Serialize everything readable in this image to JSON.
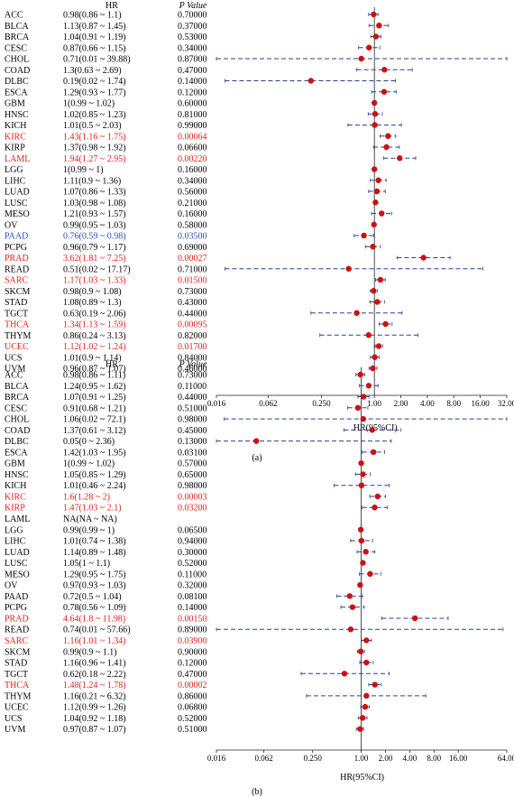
{
  "chart_data": [
    {
      "type": "forest",
      "panel_label": "(a)",
      "column_headers": {
        "hr": "HR",
        "p": "P Value"
      },
      "xlabel": "HR(95%CI)",
      "x_scale": "log2",
      "xlim": [
        0.016,
        32
      ],
      "xticks": [
        "0.016",
        "0.062",
        "0.250",
        "1.00",
        "2.00",
        "4.00",
        "8.00",
        "16.00",
        "32.00"
      ],
      "colors": {
        "default": "#000000",
        "red": "#e02020",
        "blue": "#2b4fb5",
        "marker": "#cc1111",
        "line": "#2b3f8f"
      },
      "rows": [
        {
          "cancer": "ACC",
          "hr_text": "0.98(0.86 ~ 1.1)",
          "p": "0.70000",
          "hr": 0.98,
          "lo": 0.86,
          "hi": 1.1,
          "color": "default"
        },
        {
          "cancer": "BLCA",
          "hr_text": "1.13(0.87 ~ 1.45)",
          "p": "0.37000",
          "hr": 1.13,
          "lo": 0.87,
          "hi": 1.45,
          "color": "default"
        },
        {
          "cancer": "BRCA",
          "hr_text": "1.04(0.91 ~ 1.19)",
          "p": "0.53000",
          "hr": 1.04,
          "lo": 0.91,
          "hi": 1.19,
          "color": "default"
        },
        {
          "cancer": "CESC",
          "hr_text": "0.87(0.66 ~ 1.15)",
          "p": "0.34000",
          "hr": 0.87,
          "lo": 0.66,
          "hi": 1.15,
          "color": "default"
        },
        {
          "cancer": "CHOL",
          "hr_text": "0.71(0.01 ~ 39.88)",
          "p": "0.87000",
          "hr": 0.71,
          "lo": 0.01,
          "hi": 39.88,
          "color": "default"
        },
        {
          "cancer": "COAD",
          "hr_text": "1.3(0.63 ~ 2.69)",
          "p": "0.47000",
          "hr": 1.3,
          "lo": 0.63,
          "hi": 2.69,
          "color": "default"
        },
        {
          "cancer": "DLBC",
          "hr_text": "0.19(0.02 ~ 1.74)",
          "p": "0.14000",
          "hr": 0.19,
          "lo": 0.02,
          "hi": 1.74,
          "color": "default"
        },
        {
          "cancer": "ESCA",
          "hr_text": "1.29(0.93 ~ 1.77)",
          "p": "0.12000",
          "hr": 1.29,
          "lo": 0.93,
          "hi": 1.77,
          "color": "default"
        },
        {
          "cancer": "GBM",
          "hr_text": "1(0.99 ~ 1.02)",
          "p": "0.60000",
          "hr": 1.0,
          "lo": 0.99,
          "hi": 1.02,
          "color": "default"
        },
        {
          "cancer": "HNSC",
          "hr_text": "1.02(0.85 ~ 1.23)",
          "p": "0.81000",
          "hr": 1.02,
          "lo": 0.85,
          "hi": 1.23,
          "color": "default"
        },
        {
          "cancer": "KICH",
          "hr_text": "1.01(0.5 ~ 2.03)",
          "p": "0.99000",
          "hr": 1.01,
          "lo": 0.5,
          "hi": 2.03,
          "color": "default"
        },
        {
          "cancer": "KIRC",
          "hr_text": "1.43(1.16 ~ 1.75)",
          "p": "0.00064",
          "hr": 1.43,
          "lo": 1.16,
          "hi": 1.75,
          "color": "red"
        },
        {
          "cancer": "KIRP",
          "hr_text": "1.37(0.98 ~ 1.92)",
          "p": "0.06600",
          "hr": 1.37,
          "lo": 0.98,
          "hi": 1.92,
          "color": "default"
        },
        {
          "cancer": "LAML",
          "hr_text": "1.94(1.27 ~ 2.95)",
          "p": "0.00220",
          "hr": 1.94,
          "lo": 1.27,
          "hi": 2.95,
          "color": "red"
        },
        {
          "cancer": "LGG",
          "hr_text": "1(0.99 ~ 1)",
          "p": "0.16000",
          "hr": 1.0,
          "lo": 0.99,
          "hi": 1.0,
          "color": "default"
        },
        {
          "cancer": "LIHC",
          "hr_text": "1.11(0.9 ~ 1.36)",
          "p": "0.34000",
          "hr": 1.11,
          "lo": 0.9,
          "hi": 1.36,
          "color": "default"
        },
        {
          "cancer": "LUAD",
          "hr_text": "1.07(0.86 ~ 1.33)",
          "p": "0.56000",
          "hr": 1.07,
          "lo": 0.86,
          "hi": 1.33,
          "color": "default"
        },
        {
          "cancer": "LUSC",
          "hr_text": "1.03(0.98 ~ 1.08)",
          "p": "0.21000",
          "hr": 1.03,
          "lo": 0.98,
          "hi": 1.08,
          "color": "default"
        },
        {
          "cancer": "MESO",
          "hr_text": "1.21(0.93 ~ 1.57)",
          "p": "0.16000",
          "hr": 1.21,
          "lo": 0.93,
          "hi": 1.57,
          "color": "default"
        },
        {
          "cancer": "OV",
          "hr_text": "0.99(0.95 ~ 1.03)",
          "p": "0.58000",
          "hr": 0.99,
          "lo": 0.95,
          "hi": 1.03,
          "color": "default"
        },
        {
          "cancer": "PAAD",
          "hr_text": "0.76(0.59 ~ 0.98)",
          "p": "0.03500",
          "hr": 0.76,
          "lo": 0.59,
          "hi": 0.98,
          "color": "blue"
        },
        {
          "cancer": "PCPG",
          "hr_text": "0.96(0.79 ~ 1.17)",
          "p": "0.69000",
          "hr": 0.96,
          "lo": 0.79,
          "hi": 1.17,
          "color": "default"
        },
        {
          "cancer": "PRAD",
          "hr_text": "3.62(1.81 ~ 7.25)",
          "p": "0.00027",
          "hr": 3.62,
          "lo": 1.81,
          "hi": 7.25,
          "color": "red"
        },
        {
          "cancer": "READ",
          "hr_text": "0.51(0.02 ~ 17.17)",
          "p": "0.71000",
          "hr": 0.51,
          "lo": 0.02,
          "hi": 17.17,
          "color": "default"
        },
        {
          "cancer": "SARC",
          "hr_text": "1.17(1.03 ~ 1.33)",
          "p": "0.01500",
          "hr": 1.17,
          "lo": 1.03,
          "hi": 1.33,
          "color": "red"
        },
        {
          "cancer": "SKCM",
          "hr_text": "0.98(0.9 ~ 1.08)",
          "p": "0.73000",
          "hr": 0.98,
          "lo": 0.9,
          "hi": 1.08,
          "color": "default"
        },
        {
          "cancer": "STAD",
          "hr_text": "1.08(0.89 ~ 1.3)",
          "p": "0.43000",
          "hr": 1.08,
          "lo": 0.89,
          "hi": 1.3,
          "color": "default"
        },
        {
          "cancer": "TGCT",
          "hr_text": "0.63(0.19 ~ 2.06)",
          "p": "0.44000",
          "hr": 0.63,
          "lo": 0.19,
          "hi": 2.06,
          "color": "default"
        },
        {
          "cancer": "THCA",
          "hr_text": "1.34(1.13 ~ 1.59)",
          "p": "0.00095",
          "hr": 1.34,
          "lo": 1.13,
          "hi": 1.59,
          "color": "red"
        },
        {
          "cancer": "THYM",
          "hr_text": "0.86(0.24 ~ 3.13)",
          "p": "0.82000",
          "hr": 0.86,
          "lo": 0.24,
          "hi": 3.13,
          "color": "default"
        },
        {
          "cancer": "UCEC",
          "hr_text": "1.12(1.02 ~ 1.24)",
          "p": "0.01700",
          "hr": 1.12,
          "lo": 1.02,
          "hi": 1.24,
          "color": "red"
        },
        {
          "cancer": "UCS",
          "hr_text": "1.01(0.9 ~ 1.14)",
          "p": "0.84000",
          "hr": 1.01,
          "lo": 0.9,
          "hi": 1.14,
          "color": "default"
        },
        {
          "cancer": "UVM",
          "hr_text": "0.96(0.87 ~ 1.07)",
          "p": "0.46000",
          "hr": 0.96,
          "lo": 0.87,
          "hi": 1.07,
          "color": "default"
        }
      ]
    },
    {
      "type": "forest",
      "panel_label": "(b)",
      "column_headers": {
        "hr": "HR",
        "p": "P Value"
      },
      "xlabel": "HR(95%CI)",
      "x_scale": "log2",
      "xlim": [
        0.016,
        64
      ],
      "xticks": [
        "0.016",
        "0.062",
        "0.250",
        "1.00",
        "2.00",
        "4.00",
        "8.00",
        "16.00",
        "64.00"
      ],
      "colors": {
        "default": "#000000",
        "red": "#e02020",
        "blue": "#2b4fb5",
        "marker": "#cc1111",
        "line": "#2b3f8f"
      },
      "rows": [
        {
          "cancer": "ACC",
          "hr_text": "0.98(0.86 ~ 1.11)",
          "p": "0.73000",
          "hr": 0.98,
          "lo": 0.86,
          "hi": 1.11,
          "color": "default"
        },
        {
          "cancer": "BLCA",
          "hr_text": "1.24(0.95 ~ 1.62)",
          "p": "0.11000",
          "hr": 1.24,
          "lo": 0.95,
          "hi": 1.62,
          "color": "default"
        },
        {
          "cancer": "BRCA",
          "hr_text": "1.07(0.91 ~ 1.25)",
          "p": "0.44000",
          "hr": 1.07,
          "lo": 0.91,
          "hi": 1.25,
          "color": "default"
        },
        {
          "cancer": "CESC",
          "hr_text": "0.91(0.68 ~ 1.21)",
          "p": "0.51000",
          "hr": 0.91,
          "lo": 0.68,
          "hi": 1.21,
          "color": "default"
        },
        {
          "cancer": "CHOL",
          "hr_text": "1.06(0.02 ~ 72.1)",
          "p": "0.98000",
          "hr": 1.06,
          "lo": 0.02,
          "hi": 72.1,
          "color": "default"
        },
        {
          "cancer": "COAD",
          "hr_text": "1.37(0.61 ~ 3.12)",
          "p": "0.45000",
          "hr": 1.37,
          "lo": 0.61,
          "hi": 3.12,
          "color": "default"
        },
        {
          "cancer": "DLBC",
          "hr_text": "0.05(0 ~ 2.36)",
          "p": "0.13000",
          "hr": 0.05,
          "lo": 0.001,
          "hi": 2.36,
          "color": "default"
        },
        {
          "cancer": "ESCA",
          "hr_text": "1.42(1.03 ~ 1.95)",
          "p": "0.03100",
          "hr": 1.42,
          "lo": 1.03,
          "hi": 1.95,
          "color": "default"
        },
        {
          "cancer": "GBM",
          "hr_text": "1(0.99 ~ 1.02)",
          "p": "0.57000",
          "hr": 1.0,
          "lo": 0.99,
          "hi": 1.02,
          "color": "default"
        },
        {
          "cancer": "HNSC",
          "hr_text": "1.05(0.85 ~ 1.29)",
          "p": "0.65000",
          "hr": 1.05,
          "lo": 0.85,
          "hi": 1.29,
          "color": "default"
        },
        {
          "cancer": "KICH",
          "hr_text": "1.01(0.46 ~ 2.24)",
          "p": "0.98000",
          "hr": 1.01,
          "lo": 0.46,
          "hi": 2.24,
          "color": "default"
        },
        {
          "cancer": "KIRC",
          "hr_text": "1.6(1.28 ~ 2)",
          "p": "0.00003",
          "hr": 1.6,
          "lo": 1.28,
          "hi": 2.0,
          "color": "red"
        },
        {
          "cancer": "KIRP",
          "hr_text": "1.47(1.03 ~ 2.1)",
          "p": "0.03200",
          "hr": 1.47,
          "lo": 1.03,
          "hi": 2.1,
          "color": "red"
        },
        {
          "cancer": "LAML",
          "hr_text": "NA(NA ~ NA)",
          "p": "",
          "hr": null,
          "lo": null,
          "hi": null,
          "color": "default"
        },
        {
          "cancer": "LGG",
          "hr_text": "0.99(0.99 ~ 1)",
          "p": "0.06500",
          "hr": 0.99,
          "lo": 0.99,
          "hi": 1.0,
          "color": "default"
        },
        {
          "cancer": "LIHC",
          "hr_text": "1.01(0.74 ~ 1.38)",
          "p": "0.94000",
          "hr": 1.01,
          "lo": 0.74,
          "hi": 1.38,
          "color": "default"
        },
        {
          "cancer": "LUAD",
          "hr_text": "1.14(0.89 ~ 1.48)",
          "p": "0.30000",
          "hr": 1.14,
          "lo": 0.89,
          "hi": 1.48,
          "color": "default"
        },
        {
          "cancer": "LUSC",
          "hr_text": "1.05(1 ~ 1.1)",
          "p": "0.52000",
          "hr": 1.05,
          "lo": 1.0,
          "hi": 1.1,
          "color": "default"
        },
        {
          "cancer": "MESO",
          "hr_text": "1.29(0.95 ~ 1.75)",
          "p": "0.11000",
          "hr": 1.29,
          "lo": 0.95,
          "hi": 1.75,
          "color": "default"
        },
        {
          "cancer": "OV",
          "hr_text": "0.97(0.93 ~ 1.03)",
          "p": "0.32000",
          "hr": 0.97,
          "lo": 0.93,
          "hi": 1.03,
          "color": "default"
        },
        {
          "cancer": "PAAD",
          "hr_text": "0.72(0.5 ~ 1.04)",
          "p": "0.08100",
          "hr": 0.72,
          "lo": 0.5,
          "hi": 1.04,
          "color": "default"
        },
        {
          "cancer": "PCPG",
          "hr_text": "0.78(0.56 ~ 1.09)",
          "p": "0.14000",
          "hr": 0.78,
          "lo": 0.56,
          "hi": 1.09,
          "color": "default"
        },
        {
          "cancer": "PRAD",
          "hr_text": "4.64(1.8 ~ 11.98)",
          "p": "0.00150",
          "hr": 4.64,
          "lo": 1.8,
          "hi": 11.98,
          "color": "red"
        },
        {
          "cancer": "READ",
          "hr_text": "0.74(0.01 ~ 57.66)",
          "p": "0.89000",
          "hr": 0.74,
          "lo": 0.01,
          "hi": 57.66,
          "color": "default"
        },
        {
          "cancer": "SARC",
          "hr_text": "1.16(1.01 ~ 1.34)",
          "p": "0.03900",
          "hr": 1.16,
          "lo": 1.01,
          "hi": 1.34,
          "color": "red"
        },
        {
          "cancer": "SKCM",
          "hr_text": "0.99(0.9 ~ 1.1)",
          "p": "0.90000",
          "hr": 0.99,
          "lo": 0.9,
          "hi": 1.1,
          "color": "default"
        },
        {
          "cancer": "STAD",
          "hr_text": "1.16(0.96 ~ 1.41)",
          "p": "0.12000",
          "hr": 1.16,
          "lo": 0.96,
          "hi": 1.41,
          "color": "default"
        },
        {
          "cancer": "TGCT",
          "hr_text": "0.62(0.18 ~ 2.22)",
          "p": "0.47000",
          "hr": 0.62,
          "lo": 0.18,
          "hi": 2.22,
          "color": "default"
        },
        {
          "cancer": "THCA",
          "hr_text": "1.48(1.24 ~ 1.78)",
          "p": "0.00002",
          "hr": 1.48,
          "lo": 1.24,
          "hi": 1.78,
          "color": "red"
        },
        {
          "cancer": "THYM",
          "hr_text": "1.16(0.21 ~ 6.32)",
          "p": "0.86000",
          "hr": 1.16,
          "lo": 0.21,
          "hi": 6.32,
          "color": "default"
        },
        {
          "cancer": "UCEC",
          "hr_text": "1.12(0.99 ~ 1.26)",
          "p": "0.06800",
          "hr": 1.12,
          "lo": 0.99,
          "hi": 1.26,
          "color": "default"
        },
        {
          "cancer": "UCS",
          "hr_text": "1.04(0.92 ~ 1.18)",
          "p": "0.52000",
          "hr": 1.04,
          "lo": 0.92,
          "hi": 1.18,
          "color": "default"
        },
        {
          "cancer": "UVM",
          "hr_text": "0.97(0.87 ~ 1.07)",
          "p": "0.51000",
          "hr": 0.97,
          "lo": 0.87,
          "hi": 1.07,
          "color": "default"
        }
      ]
    }
  ]
}
